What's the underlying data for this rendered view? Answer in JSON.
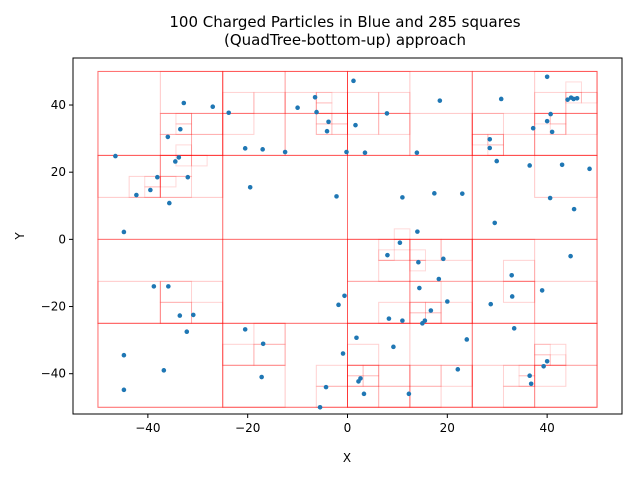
{
  "chart_data": {
    "type": "scatter",
    "title_lines": [
      "100 Charged Particles in Blue and 285 squares",
      "(QuadTree-bottom-up) approach"
    ],
    "xlabel": "X",
    "ylabel": "Y",
    "xlim": [
      -55,
      55
    ],
    "ylim": [
      -52,
      54
    ],
    "xticks": [
      -40,
      -20,
      0,
      20,
      40
    ],
    "yticks": [
      -40,
      -20,
      0,
      20,
      40
    ],
    "xtick_labels": [
      "−40",
      "−20",
      "0",
      "20",
      "40"
    ],
    "ytick_labels": [
      "−40",
      "−20",
      "0",
      "20",
      "40"
    ],
    "grid": false,
    "point_color": "#1f77b4",
    "square_color": "#ff0000",
    "domain": [
      -50,
      50
    ],
    "points": [
      [
        -46.5,
        24.8
      ],
      [
        -44.8,
        2.2
      ],
      [
        -44.8,
        -34.5
      ],
      [
        -44.8,
        -44.8
      ],
      [
        -42.3,
        13.2
      ],
      [
        -39.5,
        14.7
      ],
      [
        -38.1,
        18.5
      ],
      [
        -38.8,
        -14.0
      ],
      [
        -36.8,
        -39.0
      ],
      [
        -36.0,
        30.5
      ],
      [
        -35.7,
        10.8
      ],
      [
        -35.9,
        -14.0
      ],
      [
        -34.5,
        23.2
      ],
      [
        -33.8,
        24.4
      ],
      [
        -33.5,
        32.8
      ],
      [
        -33.6,
        -22.7
      ],
      [
        -32.8,
        40.6
      ],
      [
        -32.0,
        18.5
      ],
      [
        -32.2,
        -27.5
      ],
      [
        -30.9,
        -22.5
      ],
      [
        -27.0,
        39.5
      ],
      [
        -23.8,
        37.7
      ],
      [
        -20.5,
        27.1
      ],
      [
        -19.5,
        15.5
      ],
      [
        -20.5,
        -26.8
      ],
      [
        -17.0,
        26.8
      ],
      [
        -16.9,
        -31.1
      ],
      [
        -17.2,
        -41.0
      ],
      [
        -12.5,
        26.0
      ],
      [
        -10.0,
        39.2
      ],
      [
        -6.5,
        42.3
      ],
      [
        -6.2,
        37.9
      ],
      [
        -5.5,
        -50.0
      ],
      [
        -4.1,
        32.2
      ],
      [
        -3.8,
        35.0
      ],
      [
        -4.3,
        -44.0
      ],
      [
        -2.2,
        12.8
      ],
      [
        -1.8,
        -19.5
      ],
      [
        -0.9,
        -34.0
      ],
      [
        -0.2,
        26.0
      ],
      [
        -0.6,
        -16.8
      ],
      [
        1.2,
        47.2
      ],
      [
        1.6,
        34.0
      ],
      [
        1.8,
        -29.3
      ],
      [
        2.2,
        -42.3
      ],
      [
        2.6,
        -41.4
      ],
      [
        3.5,
        25.8
      ],
      [
        3.3,
        -46.0
      ],
      [
        7.9,
        37.5
      ],
      [
        8.0,
        -4.7
      ],
      [
        8.3,
        -23.6
      ],
      [
        9.2,
        -32.0
      ],
      [
        10.5,
        -1.0
      ],
      [
        11.0,
        12.5
      ],
      [
        11.0,
        -24.2
      ],
      [
        12.3,
        -46.0
      ],
      [
        13.9,
        25.8
      ],
      [
        14.0,
        2.3
      ],
      [
        14.2,
        -6.8
      ],
      [
        14.4,
        -14.5
      ],
      [
        15.0,
        -25.0
      ],
      [
        15.5,
        -24.2
      ],
      [
        16.7,
        -21.2
      ],
      [
        17.4,
        13.7
      ],
      [
        18.3,
        -11.8
      ],
      [
        18.5,
        41.3
      ],
      [
        19.2,
        -5.8
      ],
      [
        20.0,
        -18.5
      ],
      [
        22.1,
        -38.7
      ],
      [
        23.0,
        13.6
      ],
      [
        23.9,
        -29.8
      ],
      [
        28.5,
        29.8
      ],
      [
        28.5,
        27.2
      ],
      [
        28.7,
        -19.3
      ],
      [
        29.5,
        4.9
      ],
      [
        29.9,
        23.3
      ],
      [
        30.8,
        41.8
      ],
      [
        32.9,
        -10.7
      ],
      [
        33.0,
        -17.0
      ],
      [
        33.4,
        -26.5
      ],
      [
        36.5,
        22.0
      ],
      [
        36.5,
        -40.6
      ],
      [
        36.8,
        -43.0
      ],
      [
        37.2,
        33.1
      ],
      [
        39.0,
        -15.2
      ],
      [
        39.3,
        -37.8
      ],
      [
        40.0,
        -36.3
      ],
      [
        40.0,
        48.4
      ],
      [
        40.0,
        35.2
      ],
      [
        40.7,
        37.3
      ],
      [
        41.0,
        32.0
      ],
      [
        40.6,
        12.3
      ],
      [
        43.0,
        22.2
      ],
      [
        44.1,
        41.6
      ],
      [
        44.7,
        -5.0
      ],
      [
        44.8,
        42.2
      ],
      [
        45.3,
        41.8
      ],
      [
        45.4,
        9.0
      ],
      [
        46.0,
        42.0
      ],
      [
        48.5,
        21.0
      ]
    ],
    "squares_level1": [
      [
        -50,
        25,
        25
      ],
      [
        -25,
        25,
        25
      ],
      [
        0,
        25,
        25
      ],
      [
        25,
        25,
        25
      ],
      [
        -50,
        0,
        25
      ],
      [
        -25,
        0,
        25
      ],
      [
        0,
        0,
        25
      ],
      [
        25,
        0,
        25
      ],
      [
        -50,
        -25,
        25
      ],
      [
        -25,
        -25,
        25
      ],
      [
        0,
        -25,
        25
      ],
      [
        25,
        -25,
        25
      ],
      [
        -50,
        -50,
        25
      ],
      [
        -25,
        -50,
        25
      ],
      [
        0,
        -50,
        25
      ],
      [
        25,
        -50,
        25
      ]
    ],
    "squares_level2": [
      [
        -37.5,
        37.5,
        12.5
      ],
      [
        -37.5,
        25,
        12.5
      ],
      [
        -50,
        12.5,
        12.5
      ],
      [
        -37.5,
        12.5,
        12.5
      ],
      [
        -25,
        37.5,
        12.5
      ],
      [
        -25,
        25,
        12.5
      ],
      [
        -12.5,
        25,
        12.5
      ],
      [
        -12.5,
        37.5,
        12.5
      ],
      [
        0,
        37.5,
        12.5
      ],
      [
        0,
        25,
        12.5
      ],
      [
        12.5,
        25,
        12.5
      ],
      [
        25,
        25,
        12.5
      ],
      [
        37.5,
        37.5,
        12.5
      ],
      [
        37.5,
        25,
        12.5
      ],
      [
        37.5,
        12.5,
        12.5
      ],
      [
        0,
        -12.5,
        12.5
      ],
      [
        12.5,
        -12.5,
        12.5
      ],
      [
        0,
        -25,
        12.5
      ],
      [
        12.5,
        -25,
        12.5
      ],
      [
        25,
        -12.5,
        12.5
      ],
      [
        25,
        -25,
        12.5
      ],
      [
        37.5,
        -25,
        12.5
      ],
      [
        -37.5,
        -25,
        12.5
      ],
      [
        -50,
        -25,
        12.5
      ],
      [
        -25,
        -37.5,
        12.5
      ],
      [
        -25,
        -50,
        12.5
      ],
      [
        0,
        -37.5,
        12.5
      ],
      [
        0,
        -50,
        12.5
      ],
      [
        12.5,
        -50,
        12.5
      ],
      [
        25,
        -50,
        12.5
      ],
      [
        37.5,
        -50,
        12.5
      ],
      [
        37.5,
        -37.5,
        12.5
      ]
    ],
    "squares_level3": [
      [
        -37.5,
        31.25,
        6.25
      ],
      [
        -31.25,
        31.25,
        6.25
      ],
      [
        -37.5,
        25,
        6.25
      ],
      [
        -31.25,
        25,
        6.25
      ],
      [
        -43.75,
        12.5,
        6.25
      ],
      [
        -37.5,
        12.5,
        6.25
      ],
      [
        -37.5,
        18.75,
        6.25
      ],
      [
        -25,
        37.5,
        6.25
      ],
      [
        -18.75,
        37.5,
        6.25
      ],
      [
        -25,
        31.25,
        6.25
      ],
      [
        -6.25,
        37.5,
        6.25
      ],
      [
        -6.25,
        31.25,
        6.25
      ],
      [
        -12.5,
        37.5,
        6.25
      ],
      [
        0,
        31.25,
        6.25
      ],
      [
        6.25,
        31.25,
        6.25
      ],
      [
        0,
        37.5,
        6.25
      ],
      [
        6.25,
        37.5,
        6.25
      ],
      [
        25,
        25,
        6.25
      ],
      [
        25,
        31.25,
        6.25
      ],
      [
        31.25,
        25,
        6.25
      ],
      [
        37.5,
        37.5,
        6.25
      ],
      [
        43.75,
        37.5,
        6.25
      ],
      [
        37.5,
        31.25,
        6.25
      ],
      [
        43.75,
        31.25,
        6.25
      ],
      [
        6.25,
        -6.25,
        6.25
      ],
      [
        6.25,
        -12.5,
        6.25
      ],
      [
        12.5,
        -6.25,
        6.25
      ],
      [
        18.75,
        -6.25,
        6.25
      ],
      [
        12.5,
        -18.75,
        6.25
      ],
      [
        12.5,
        -25,
        6.25
      ],
      [
        18.75,
        -25,
        6.25
      ],
      [
        6.25,
        -25,
        6.25
      ],
      [
        31.25,
        -18.75,
        6.25
      ],
      [
        31.25,
        -12.5,
        6.25
      ],
      [
        -37.5,
        -25,
        6.25
      ],
      [
        -31.25,
        -25,
        6.25
      ],
      [
        -37.5,
        -18.75,
        6.25
      ],
      [
        -25,
        -37.5,
        6.25
      ],
      [
        -18.75,
        -37.5,
        6.25
      ],
      [
        -18.75,
        -31.25,
        6.25
      ],
      [
        -6.25,
        -50,
        6.25
      ],
      [
        -6.25,
        -43.75,
        6.25
      ],
      [
        0,
        -43.75,
        6.25
      ],
      [
        0,
        -37.5,
        6.25
      ],
      [
        0,
        -50,
        6.25
      ],
      [
        6.25,
        -50,
        6.25
      ],
      [
        6.25,
        -43.75,
        6.25
      ],
      [
        31.25,
        -43.75,
        6.25
      ],
      [
        37.5,
        -43.75,
        6.25
      ],
      [
        37.5,
        -37.5,
        6.25
      ],
      [
        31.25,
        -50,
        6.25
      ],
      [
        12.5,
        -50,
        6.25
      ],
      [
        12.5,
        -43.75,
        6.25
      ],
      [
        18.75,
        -43.75,
        6.25
      ]
    ],
    "squares_level4": [
      [
        -34.375,
        21.875,
        3.125
      ],
      [
        -34.375,
        25,
        3.125
      ],
      [
        -31.25,
        21.875,
        3.125
      ],
      [
        -40.625,
        12.5,
        3.125
      ],
      [
        -40.625,
        15.625,
        3.125
      ],
      [
        -37.5,
        15.625,
        3.125
      ],
      [
        -6.25,
        31.25,
        3.125
      ],
      [
        -3.125,
        31.25,
        3.125
      ],
      [
        -6.25,
        34.375,
        3.125
      ],
      [
        -3.125,
        34.375,
        3.125
      ],
      [
        -6.25,
        40.625,
        3.125
      ],
      [
        -6.25,
        37.5,
        3.125
      ],
      [
        25,
        28.125,
        3.125
      ],
      [
        28.125,
        28.125,
        3.125
      ],
      [
        28.125,
        25,
        3.125
      ],
      [
        37.5,
        34.375,
        3.125
      ],
      [
        40.625,
        34.375,
        3.125
      ],
      [
        40.625,
        31.25,
        3.125
      ],
      [
        43.75,
        40.625,
        3.125
      ],
      [
        46.875,
        40.625,
        3.125
      ],
      [
        43.75,
        43.75,
        3.125
      ],
      [
        6.25,
        -6.25,
        3.125
      ],
      [
        9.375,
        -3.125,
        3.125
      ],
      [
        9.375,
        0,
        3.125
      ],
      [
        12.5,
        -9.375,
        3.125
      ],
      [
        12.5,
        -6.25,
        3.125
      ],
      [
        15.625,
        -25,
        3.125
      ],
      [
        15.625,
        -21.875,
        3.125
      ],
      [
        12.5,
        -25,
        3.125
      ],
      [
        12.5,
        -21.875,
        3.125
      ],
      [
        0,
        -43.75,
        3.125
      ],
      [
        3.125,
        -43.75,
        3.125
      ],
      [
        0,
        -40.625,
        3.125
      ],
      [
        3.125,
        -40.625,
        3.125
      ],
      [
        37.5,
        -37.5,
        3.125
      ],
      [
        40.625,
        -37.5,
        3.125
      ],
      [
        37.5,
        -34.375,
        3.125
      ],
      [
        34.375,
        -43.75,
        3.125
      ],
      [
        34.375,
        -40.625,
        3.125
      ],
      [
        -34.375,
        31.25,
        3.125
      ],
      [
        -34.375,
        34.375,
        3.125
      ]
    ]
  }
}
